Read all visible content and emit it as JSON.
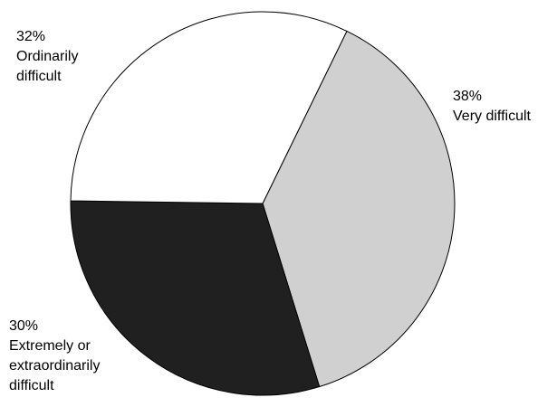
{
  "chart_data": {
    "type": "pie",
    "title": "",
    "legend": "none",
    "slices": [
      {
        "pct_label": "38%",
        "label_lines": [
          "Very difficult"
        ],
        "value": 38,
        "color": "#d0d0d0"
      },
      {
        "pct_label": "30%",
        "label_lines": [
          "Extremely or",
          "extraordinarily",
          "difficult"
        ],
        "value": 30,
        "color": "#202020"
      },
      {
        "pct_label": "32%",
        "label_lines": [
          "Ordinarily",
          "difficult"
        ],
        "value": 32,
        "color": "#ffffff"
      }
    ]
  }
}
